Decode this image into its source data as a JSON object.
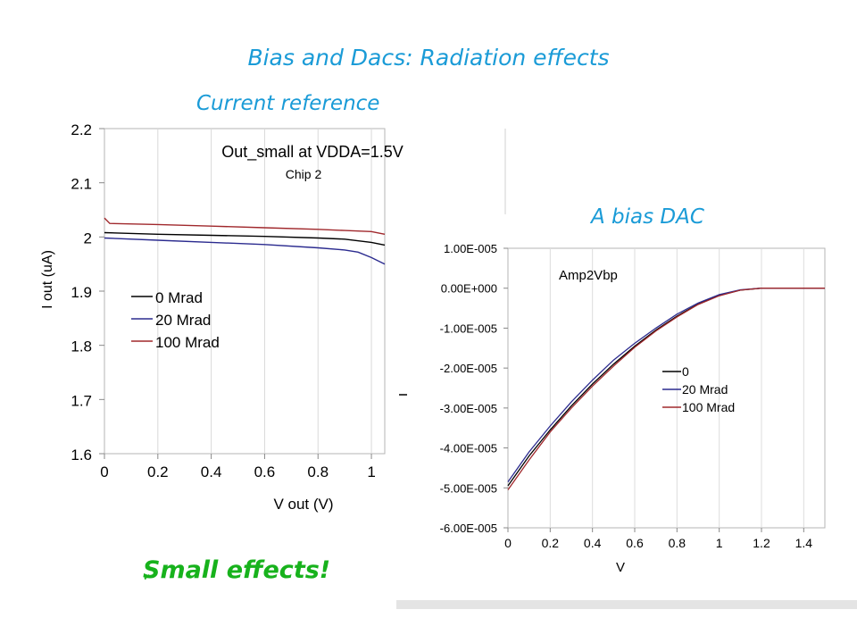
{
  "slide": {
    "title": "Bias and Dacs: Radiation effects",
    "subtitle_left": "Current reference",
    "subtitle_right": "A bias DAC",
    "conclusion": "Small effects!",
    "check_icon": "checkmark-icon",
    "accent_color": "#1a9bd7",
    "conclusion_color": "#17b21c"
  },
  "chart_data": [
    {
      "type": "line",
      "title": "Out_small at VDDA=1.5V",
      "subtitle": "Chip 2",
      "xlabel": "V out (V)",
      "ylabel": "I out (uA)",
      "xlim": [
        0,
        1.05
      ],
      "ylim": [
        1.6,
        2.2
      ],
      "x_ticks": [
        "0",
        "0.2",
        "0.4",
        "0.6",
        "0.8",
        "1"
      ],
      "y_ticks": [
        "1.6",
        "1.7",
        "1.8",
        "1.9",
        "2",
        "2.1",
        "2.2"
      ],
      "grid": "vertical",
      "legend_position": "lower-left",
      "series": [
        {
          "name": "0 Mrad",
          "color": "#000000",
          "x": [
            0,
            0.2,
            0.4,
            0.6,
            0.8,
            0.9,
            1.0,
            1.05
          ],
          "y": [
            2.008,
            2.005,
            2.003,
            2.001,
            1.998,
            1.996,
            1.99,
            1.985
          ]
        },
        {
          "name": "20 Mrad",
          "color": "#2b2b8f",
          "x": [
            0,
            0.2,
            0.4,
            0.6,
            0.8,
            0.9,
            0.95,
            1.0,
            1.05
          ],
          "y": [
            1.998,
            1.994,
            1.99,
            1.986,
            1.98,
            1.976,
            1.972,
            1.962,
            1.95
          ]
        },
        {
          "name": "100 Mrad",
          "color": "#a0282c",
          "x": [
            0,
            0.02,
            0.2,
            0.4,
            0.6,
            0.8,
            0.9,
            1.0,
            1.05
          ],
          "y": [
            2.035,
            2.025,
            2.023,
            2.02,
            2.017,
            2.014,
            2.012,
            2.01,
            2.005
          ]
        }
      ]
    },
    {
      "type": "line",
      "title": "Amp2Vbp",
      "xlabel": "V",
      "ylabel": "",
      "xlim": [
        0,
        1.5
      ],
      "ylim": [
        -6e-05,
        1e-05
      ],
      "x_ticks": [
        "0",
        "0.2",
        "0.4",
        "0.6",
        "0.8",
        "1",
        "1.2",
        "1.4"
      ],
      "y_ticks": [
        "1.00E-005",
        "0.00E+000",
        "-1.00E-005",
        "-2.00E-005",
        "-3.00E-005",
        "-4.00E-005",
        "-5.00E-005",
        "-6.00E-005"
      ],
      "grid": "vertical",
      "legend_position": "center-right",
      "series": [
        {
          "name": "0",
          "color": "#000000",
          "x": [
            0,
            0.1,
            0.2,
            0.3,
            0.4,
            0.5,
            0.6,
            0.7,
            0.8,
            0.9,
            1.0,
            1.1,
            1.2,
            1.25,
            1.3,
            1.4,
            1.5
          ],
          "y": [
            -4.95e-05,
            -4.2e-05,
            -3.55e-05,
            -2.95e-05,
            -2.4e-05,
            -1.9e-05,
            -1.45e-05,
            -1.05e-05,
            -7e-06,
            -4e-06,
            -1.8e-06,
            -5e-07,
            0,
            0,
            0,
            0,
            0
          ]
        },
        {
          "name": "20 Mrad",
          "color": "#2b2b8f",
          "x": [
            0,
            0.1,
            0.2,
            0.3,
            0.4,
            0.5,
            0.6,
            0.7,
            0.8,
            0.9,
            1.0,
            1.1,
            1.2,
            1.25,
            1.3,
            1.4,
            1.5
          ],
          "y": [
            -4.85e-05,
            -4.1e-05,
            -3.45e-05,
            -2.85e-05,
            -2.3e-05,
            -1.8e-05,
            -1.38e-05,
            -1e-05,
            -6.5e-06,
            -3.7e-06,
            -1.6e-06,
            -4e-07,
            0,
            0,
            0,
            0,
            0
          ]
        },
        {
          "name": "100 Mrad",
          "color": "#a0282c",
          "x": [
            0,
            0.1,
            0.2,
            0.3,
            0.4,
            0.5,
            0.6,
            0.7,
            0.8,
            0.9,
            1.0,
            1.1,
            1.2,
            1.25,
            1.3,
            1.4,
            1.5
          ],
          "y": [
            -5.05e-05,
            -4.3e-05,
            -3.6e-05,
            -3e-05,
            -2.45e-05,
            -1.95e-05,
            -1.48e-05,
            -1.07e-05,
            -7.2e-06,
            -4.1e-06,
            -1.9e-06,
            -5e-07,
            0,
            0,
            0,
            0,
            0
          ]
        }
      ]
    }
  ]
}
